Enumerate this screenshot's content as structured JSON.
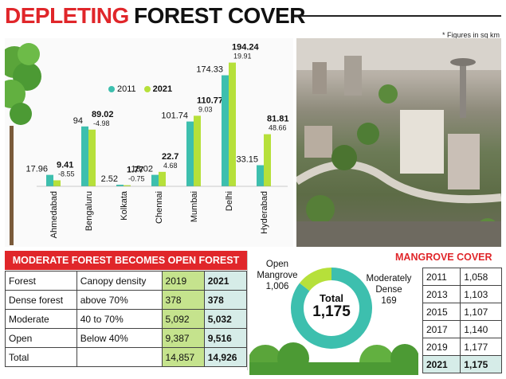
{
  "header": {
    "title_part1": "DEPLETING",
    "title_part2": "FOREST COVER",
    "note": "* Figures in sq km"
  },
  "colors": {
    "teal_2011": "#3dbfae",
    "green_2021": "#b6e03a",
    "accent_red": "#e0262a"
  },
  "legend": {
    "label_2011": "2011",
    "label_2021": "2021"
  },
  "chart_data": [
    {
      "type": "bar",
      "categories": [
        "Ahmedabad",
        "Bengaluru",
        "Kolkata",
        "Chennai",
        "Mumbai",
        "Delhi",
        "Hyderabad"
      ],
      "series": [
        {
          "name": "2011",
          "values": [
            17.96,
            94,
            2.52,
            18.02,
            101.74,
            174.33,
            33.15
          ]
        },
        {
          "name": "2021",
          "values": [
            9.41,
            89.02,
            1.77,
            22.7,
            110.77,
            194.24,
            81.81
          ]
        }
      ],
      "value_labels_2011": [
        "17.96",
        "94",
        "2.52",
        "18.02",
        "101.74",
        "174.33",
        "33.15"
      ],
      "value_labels_2021": [
        "9.41",
        "89.02",
        "1.77",
        "22.7",
        "110.77",
        "194.24",
        "81.81"
      ],
      "change_labels": [
        "-8.55",
        "-4.98",
        "-0.75",
        "4.68",
        "9.03",
        "19.91",
        "48.66"
      ],
      "ylim": [
        0,
        200
      ]
    },
    {
      "type": "table",
      "title": "MODERATE FOREST BECOMES OPEN FOREST",
      "columns": [
        "Forest",
        "Canopy density",
        "2019",
        "2021"
      ],
      "rows": [
        [
          "Dense forest",
          "above 70%",
          "378",
          "378"
        ],
        [
          "Moderate",
          "40 to 70%",
          "5,092",
          "5,032"
        ],
        [
          "Open",
          "Below 40%",
          "9,387",
          "9,516"
        ],
        [
          "Total",
          "",
          "14,857",
          "14,926"
        ]
      ]
    },
    {
      "type": "pie",
      "labels": [
        "Open Mangrove",
        "Moderately Dense"
      ],
      "values": [
        1006,
        169
      ],
      "center_label": "Total",
      "center_value": "1,175",
      "slice_texts": {
        "open_line1": "Open",
        "open_line2": "Mangrove",
        "open_value": "1,006",
        "dense_line1": "Moderately",
        "dense_line2": "Dense",
        "dense_value": "169"
      }
    },
    {
      "type": "table",
      "title": "MANGROVE COVER",
      "rows": [
        [
          "2011",
          "1,058"
        ],
        [
          "2013",
          "1,103"
        ],
        [
          "2015",
          "1,107"
        ],
        [
          "2017",
          "1,140"
        ],
        [
          "2019",
          "1,177"
        ],
        [
          "2021",
          "1,175"
        ]
      ]
    }
  ]
}
